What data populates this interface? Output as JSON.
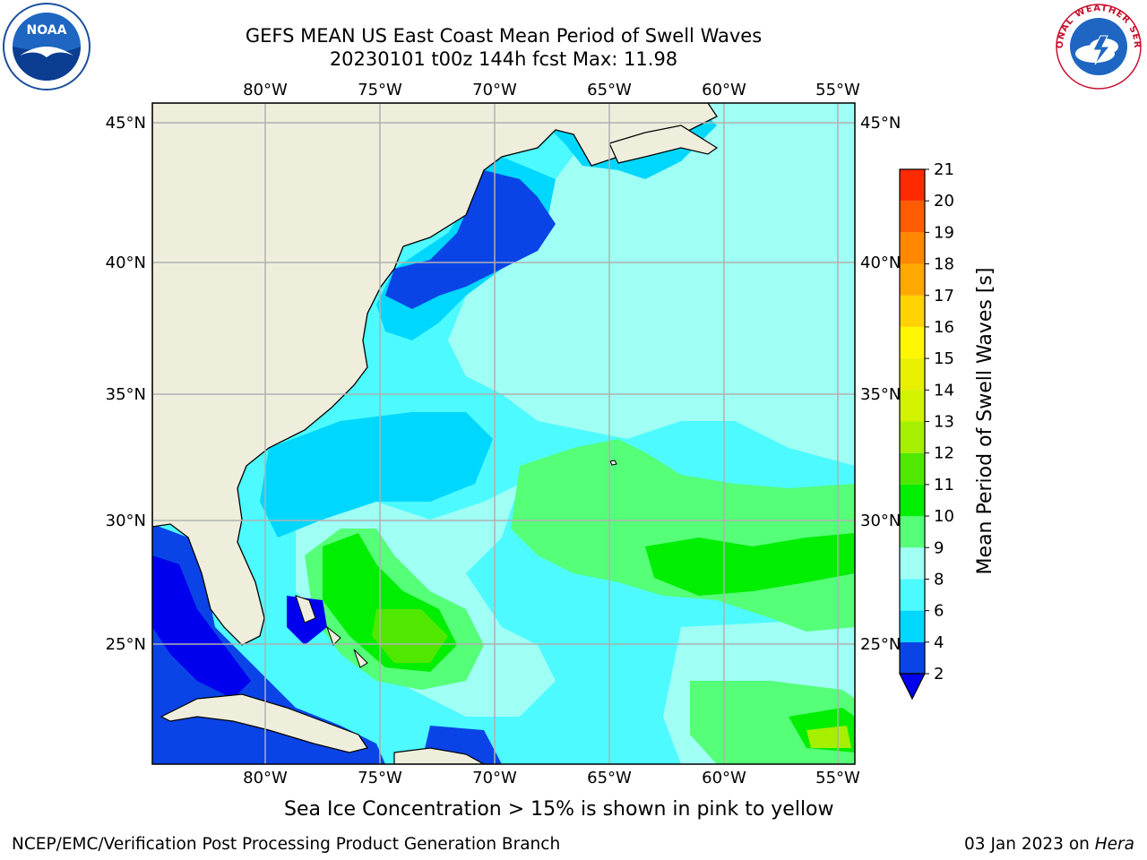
{
  "header": {
    "title_line1": "GEFS MEAN US East Coast Mean Period of Swell Waves",
    "title_line2": "20230101 t00z 144h fcst   Max: 11.98"
  },
  "logos": {
    "left": "noaa-logo",
    "right": "national-weather-service-logo",
    "right_text": "NATIONAL WEATHER SERVICE"
  },
  "map": {
    "lon_labels": [
      "80°W",
      "75°W",
      "70°W",
      "65°W",
      "60°W",
      "55°W"
    ],
    "lat_labels": [
      "45°N",
      "40°N",
      "35°N",
      "30°N",
      "25°N"
    ],
    "colors": {
      "land": "#efeedc",
      "grid": "#b0b0b0",
      "coast": "#000000"
    }
  },
  "colorbar": {
    "title": "Mean Period of Swell Waves [s]",
    "labels": [
      "2",
      "4",
      "6",
      "8",
      "9",
      "10",
      "11",
      "12",
      "13",
      "14",
      "15",
      "16",
      "17",
      "18",
      "19",
      "20",
      "21"
    ],
    "colors": [
      "#0a44e6",
      "#00d7ff",
      "#4cfaff",
      "#9ffff5",
      "#55ff78",
      "#00ee00",
      "#50e800",
      "#a6ef00",
      "#d2f300",
      "#e8f000",
      "#fff700",
      "#ffd200",
      "#ffa800",
      "#ff8800",
      "#ff5b00",
      "#ff2a00",
      "#ff0000"
    ],
    "extend_color": "#0000ee"
  },
  "footer": {
    "ice_note": "Sea Ice Concentration > 15% is shown in pink to yellow",
    "credit": "NCEP/EMC/Verification Post Processing Product Generation Branch",
    "date": "03 Jan 2023 on ",
    "machine": "Hera"
  }
}
